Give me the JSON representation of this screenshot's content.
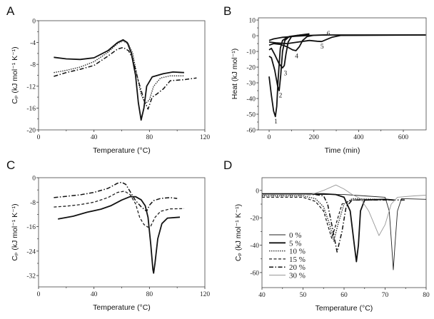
{
  "panels": {
    "a": "A",
    "b": "B",
    "c": "C",
    "d": "D"
  },
  "chart_data": [
    {
      "id": "A",
      "type": "line",
      "xlabel": "Temperature (°C)",
      "ylabel": "Cₚ (kJ mol⁻¹ K⁻¹)",
      "xlim": [
        0,
        120
      ],
      "ylim": [
        -20,
        0
      ],
      "xticks": [
        0,
        40,
        80,
        120
      ],
      "yticks": [
        0,
        -4,
        -8,
        -12,
        -16,
        -20
      ],
      "series": [
        {
          "name": "solid",
          "style": "solid",
          "x": [
            11,
            20,
            30,
            40,
            50,
            57,
            61,
            64,
            67,
            70,
            72,
            74,
            76,
            78,
            82,
            90,
            97,
            105
          ],
          "y": [
            -6.7,
            -7,
            -7.1,
            -6.8,
            -5.5,
            -4,
            -3.5,
            -4,
            -6,
            -10,
            -15,
            -18.2,
            -16,
            -12,
            -10.3,
            -9.7,
            -9.4,
            -9.5
          ]
        },
        {
          "name": "dotted",
          "style": "dotted",
          "x": [
            11,
            20,
            30,
            40,
            50,
            57,
            61,
            65,
            68,
            71,
            74,
            77,
            80,
            83,
            88,
            95,
            105
          ],
          "y": [
            -9.5,
            -9.1,
            -8.5,
            -7.5,
            -5.8,
            -4.2,
            -3.7,
            -4.3,
            -6,
            -10,
            -13.5,
            -15.2,
            -14.5,
            -12,
            -10.5,
            -10.1,
            -10.1
          ]
        },
        {
          "name": "dash-dot",
          "style": "dashdot",
          "x": [
            11,
            20,
            30,
            40,
            50,
            57,
            61,
            65,
            68,
            72,
            76,
            79,
            82,
            85,
            90,
            95,
            105,
            114
          ],
          "y": [
            -10.2,
            -9.5,
            -8.9,
            -8.2,
            -6.5,
            -5.2,
            -4.9,
            -5.5,
            -7,
            -11,
            -14.5,
            -16.2,
            -14,
            -13.5,
            -12.5,
            -11,
            -10.8,
            -10.5
          ]
        }
      ]
    },
    {
      "id": "B",
      "type": "line",
      "xlabel": "Time (min)",
      "ylabel": "Heat (kJ mol⁻¹)",
      "xlim": [
        -48,
        702
      ],
      "ylim": [
        -60,
        11.4
      ],
      "xticks": [
        0,
        200,
        400,
        600
      ],
      "yticks": [
        10,
        0,
        -10,
        -20,
        -30,
        -40,
        -50,
        -60
      ],
      "series": [
        {
          "name": "1",
          "style": "solid",
          "x": [
            0,
            10,
            20,
            28,
            34,
            40,
            50,
            60,
            80,
            120,
            180
          ],
          "y": [
            -26,
            -38,
            -48,
            -51.5,
            -45,
            -28,
            -8,
            -3,
            -1,
            0,
            0.5
          ],
          "label_at": [
            30,
            -54.6
          ]
        },
        {
          "name": "2",
          "style": "solid",
          "x": [
            0,
            10,
            25,
            38,
            45,
            52,
            60,
            70,
            90,
            130,
            180
          ],
          "y": [
            -13,
            -14,
            -22,
            -32,
            -35,
            -25,
            -10,
            -3,
            -0.5,
            0.3,
            0.8
          ],
          "label_at": [
            51,
            -38
          ]
        },
        {
          "name": "3",
          "style": "solid",
          "x": [
            0,
            10,
            25,
            45,
            60,
            68,
            75,
            85,
            100,
            140,
            180
          ],
          "y": [
            -9,
            -8,
            -12,
            -18,
            -20.5,
            -19,
            -12,
            -4,
            -0.5,
            0.5,
            1.2
          ],
          "label_at": [
            73,
            -23.8
          ]
        },
        {
          "name": "4",
          "style": "solid",
          "x": [
            0,
            20,
            50,
            80,
            105,
            120,
            135,
            150,
            170,
            200,
            260
          ],
          "y": [
            -6,
            -5,
            -5.5,
            -7,
            -9,
            -9.5,
            -7,
            -3,
            -0.5,
            0.3,
            0.5
          ],
          "label_at": [
            123,
            -12.9
          ]
        },
        {
          "name": "5",
          "style": "solid",
          "x": [
            0,
            30,
            80,
            130,
            180,
            215,
            235,
            255,
            280,
            320,
            700
          ],
          "y": [
            -4,
            -4.5,
            -5,
            -4,
            -3,
            -3.5,
            -3.7,
            -2.5,
            -1,
            0.2,
            0.5
          ],
          "label_at": [
            237,
            -6.8
          ]
        },
        {
          "name": "6",
          "style": "solid",
          "x": [
            0,
            20,
            60,
            120,
            180,
            250,
            320,
            700
          ],
          "y": [
            -3,
            -2,
            -1,
            -0.3,
            0.2,
            0.5,
            0.5,
            0.5
          ],
          "label_at": [
            265,
            1.5
          ]
        }
      ]
    },
    {
      "id": "C",
      "type": "line",
      "xlabel": "Temperature (°C)",
      "ylabel": "Cₚ (kJ mol⁻¹ K⁻¹)",
      "xlim": [
        0,
        120
      ],
      "ylim": [
        -35.7,
        0
      ],
      "xticks": [
        0,
        40,
        80,
        120
      ],
      "yticks": [
        0,
        -8,
        -16,
        -24,
        -32
      ],
      "series": [
        {
          "name": "dash-dot",
          "style": "dashdot",
          "x": [
            11,
            20,
            30,
            40,
            50,
            57,
            60,
            63,
            66,
            70,
            74,
            78,
            80,
            83,
            88,
            95,
            100
          ],
          "y": [
            -6.5,
            -6.1,
            -5.6,
            -4.8,
            -3.5,
            -1.8,
            -1.5,
            -2.2,
            -4.5,
            -7.5,
            -9.5,
            -11,
            -9,
            -7.5,
            -6.8,
            -6.5,
            -6.8
          ]
        },
        {
          "name": "dashed",
          "style": "dashed",
          "x": [
            11,
            20,
            30,
            40,
            50,
            57,
            62,
            66,
            70,
            73,
            76,
            79,
            81,
            84,
            88,
            95,
            105
          ],
          "y": [
            -9.6,
            -9.3,
            -8.8,
            -8,
            -6.5,
            -4.8,
            -4.4,
            -5.5,
            -8.5,
            -13,
            -15.3,
            -16.2,
            -15.8,
            -13,
            -11,
            -10.2,
            -10.1
          ]
        },
        {
          "name": "solid",
          "style": "solid",
          "x": [
            14,
            25,
            35,
            45,
            52,
            60,
            66,
            70,
            74,
            77,
            79,
            81,
            82.5,
            83,
            84,
            86,
            89,
            93,
            102
          ],
          "y": [
            -13.5,
            -12.6,
            -11.3,
            -10.3,
            -9.2,
            -7.3,
            -6.2,
            -6.2,
            -7.2,
            -9.2,
            -13,
            -22,
            -30,
            -31.2,
            -28,
            -20,
            -15,
            -13.2,
            -12.9
          ]
        }
      ]
    },
    {
      "id": "D",
      "type": "line",
      "xlabel": "Temperature (°C)",
      "ylabel": "Cₚ (kJ mol⁻¹ K⁻¹)",
      "xlim": [
        40,
        80
      ],
      "ylim": [
        -71,
        9.3
      ],
      "xticks": [
        40,
        50,
        60,
        70,
        80
      ],
      "yticks": [
        0,
        -20,
        -40,
        -60
      ],
      "legend": "lower-left",
      "series": [
        {
          "name": "0 %",
          "style": "thin",
          "x": [
            40,
            60,
            65,
            70,
            71,
            71.6,
            72,
            72.4,
            73,
            74,
            80
          ],
          "y": [
            -3,
            -3,
            -4,
            -5,
            -15,
            -40,
            -58,
            -40,
            -15,
            -6,
            -6.5
          ]
        },
        {
          "name": "5 %",
          "style": "solid",
          "x": [
            40,
            55,
            58,
            60,
            61.5,
            62.5,
            63,
            63.5,
            64,
            65,
            70,
            72
          ],
          "y": [
            -2.5,
            -2.5,
            -3,
            -5,
            -15,
            -40,
            -52,
            -40,
            -15,
            -7,
            -6.5,
            -7
          ]
        },
        {
          "name": "10 %",
          "style": "dotted",
          "x": [
            40,
            50,
            53,
            55,
            56.5,
            57.5,
            58.5,
            60,
            62,
            68
          ],
          "y": [
            -4,
            -4,
            -6,
            -12,
            -25,
            -37,
            -25,
            -10,
            -6,
            -6.5
          ]
        },
        {
          "name": "15 %",
          "style": "dashed",
          "x": [
            40,
            50,
            53,
            55,
            56,
            57,
            58,
            59.5,
            62,
            68
          ],
          "y": [
            -5,
            -5,
            -8,
            -15,
            -25,
            -35,
            -25,
            -10,
            -7,
            -6.5
          ]
        },
        {
          "name": "20 %",
          "style": "dashdot",
          "x": [
            40,
            53,
            55,
            56,
            57,
            58.3,
            59.5,
            60.5,
            62,
            66,
            75
          ],
          "y": [
            -3,
            -3,
            -4,
            -10,
            -25,
            -45,
            -30,
            -12,
            -7,
            -7,
            -7
          ]
        },
        {
          "name": "30 %",
          "style": "gray",
          "x": [
            40,
            52,
            55,
            58,
            60,
            62,
            64,
            66,
            68.5,
            70,
            71.5,
            73,
            77,
            80
          ],
          "y": [
            -3,
            -3,
            0,
            4,
            1,
            -3,
            -6,
            -15,
            -33,
            -25,
            -10,
            -5,
            -4,
            -3.5
          ]
        }
      ]
    }
  ]
}
